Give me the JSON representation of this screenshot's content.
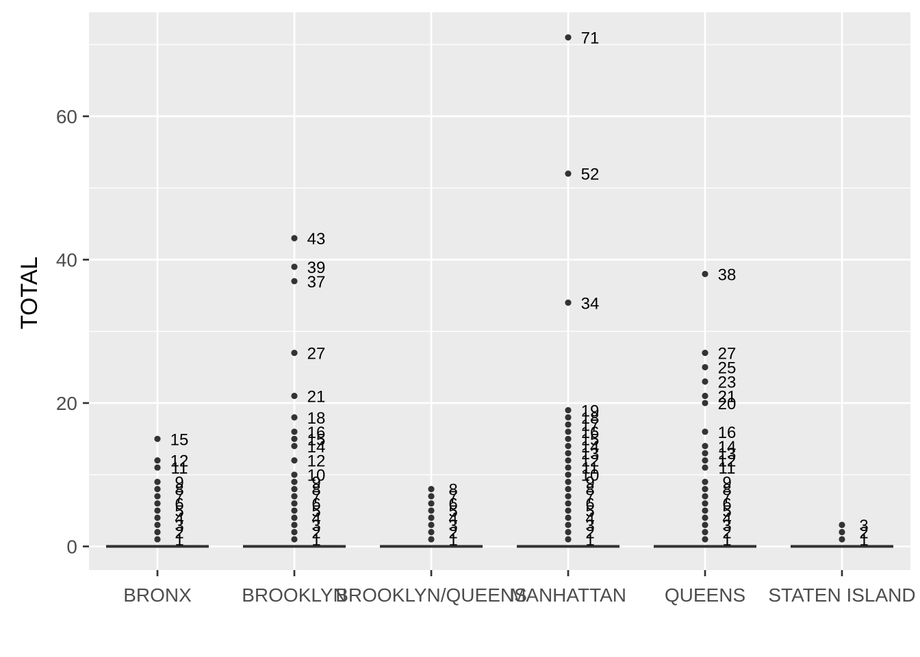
{
  "chart_data": {
    "type": "boxplot",
    "ylabel": "TOTAL",
    "xlabel": "",
    "ylim": [
      -3.3,
      74.5
    ],
    "yticks": [
      0,
      20,
      40,
      60
    ],
    "grid": true,
    "categories": [
      "BRONX",
      "BROOKLYN",
      "BROOKLYN/QUEENS",
      "MANHATTAN",
      "QUEENS",
      "STATEN ISLAND"
    ],
    "box_values": [
      0,
      0,
      0,
      0,
      0,
      0
    ],
    "outliers": [
      [
        1,
        2,
        3,
        4,
        5,
        6,
        7,
        8,
        9,
        11,
        12,
        15
      ],
      [
        1,
        2,
        3,
        4,
        5,
        6,
        7,
        8,
        9,
        10,
        12,
        14,
        15,
        16,
        18,
        21,
        27,
        37,
        39,
        43
      ],
      [
        1,
        2,
        3,
        4,
        5,
        6,
        7,
        8
      ],
      [
        1,
        2,
        3,
        4,
        5,
        6,
        7,
        8,
        9,
        10,
        11,
        12,
        13,
        14,
        15,
        16,
        17,
        18,
        19,
        34,
        52,
        71
      ],
      [
        1,
        2,
        3,
        4,
        5,
        6,
        7,
        8,
        9,
        11,
        12,
        13,
        14,
        16,
        20,
        21,
        23,
        25,
        27,
        38
      ],
      [
        1,
        2,
        3
      ]
    ],
    "colors": {
      "panel": "#ebebeb",
      "grid": "#ffffff",
      "points": "#333333",
      "box": "#333333",
      "tick_text": "#4d4d4d",
      "tick_mark": "#333333"
    }
  }
}
